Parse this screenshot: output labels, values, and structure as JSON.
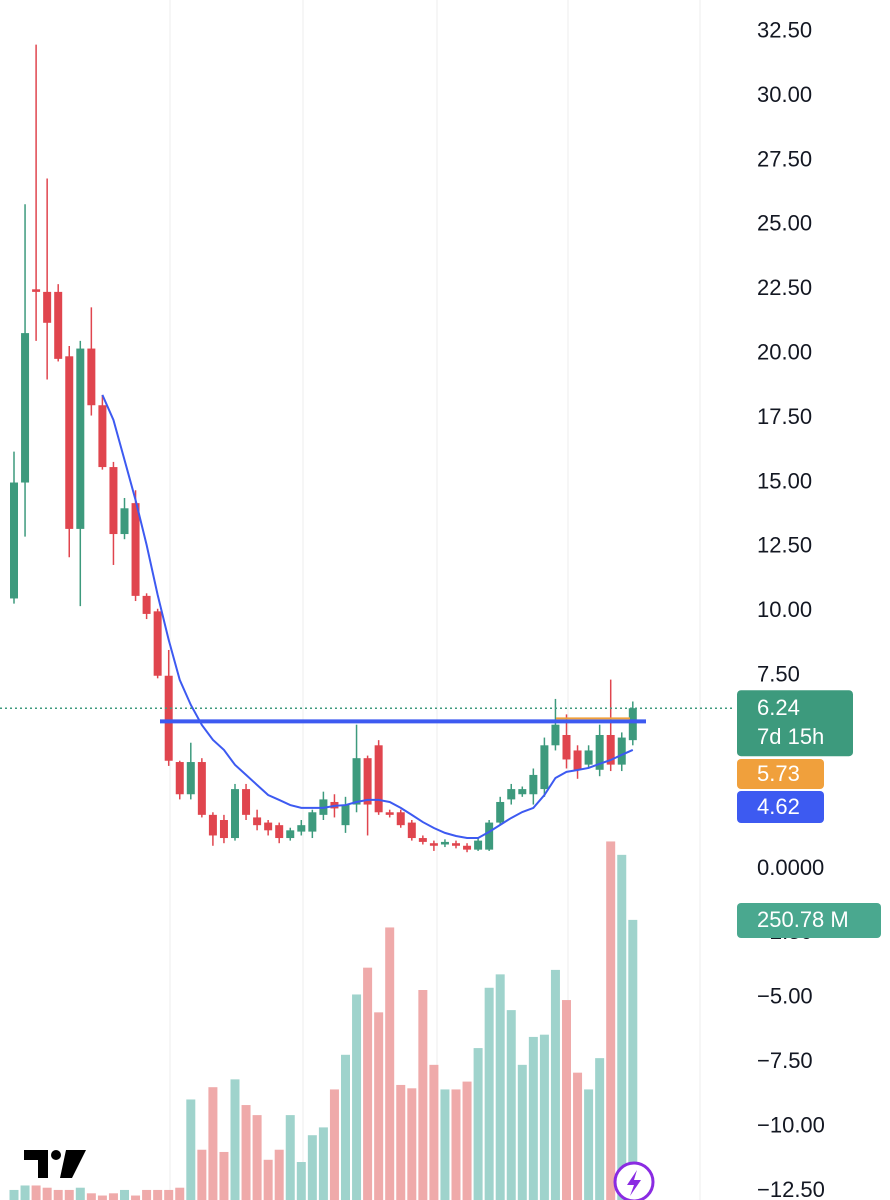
{
  "chart_data": {
    "type": "candlestick",
    "ylim": [
      -12.85,
      33.73
    ],
    "yticks": [
      {
        "value": 32.5,
        "label": "32.50"
      },
      {
        "value": 30,
        "label": "30.00"
      },
      {
        "value": 27.5,
        "label": "27.50"
      },
      {
        "value": 25,
        "label": "25.00"
      },
      {
        "value": 22.5,
        "label": "22.50"
      },
      {
        "value": 20,
        "label": "20.00"
      },
      {
        "value": 17.5,
        "label": "17.50"
      },
      {
        "value": 15,
        "label": "15.00"
      },
      {
        "value": 12.5,
        "label": "12.50"
      },
      {
        "value": 10,
        "label": "10.00"
      },
      {
        "value": 7.5,
        "label": "7.50"
      },
      {
        "value": 0,
        "label": "0.0000"
      },
      {
        "value": -2.5,
        "label": "−2.50"
      },
      {
        "value": -5,
        "label": "−5.00"
      },
      {
        "value": -7.5,
        "label": "−7.50"
      },
      {
        "value": -10,
        "label": "−10.00"
      },
      {
        "value": -12.5,
        "label": "−12.50"
      }
    ],
    "grid": true,
    "up_color": "#3d9a7d",
    "down_color": "#e0454e",
    "candles": {
      "open": [
        10.5,
        15,
        22.5,
        22.4,
        22.4,
        19.9,
        13.2,
        20.2,
        18,
        15.6,
        13,
        14.2,
        10.6,
        10,
        7.5,
        4.15,
        2.9,
        4.15,
        2.1,
        1.9,
        1.2,
        3.1,
        2,
        1.8,
        1.7,
        1.2,
        1.45,
        1.45,
        2.1,
        2.6,
        1.7,
        2.5,
        4.3,
        4.8,
        2.2,
        2.2,
        1.8,
        1.2,
        1,
        0.95,
        1,
        0.9,
        0.75,
        0.75,
        1.8,
        2.7,
        2.9,
        2.9,
        3.1,
        4.8,
        5.2,
        4.6,
        4.05,
        3.85,
        5.2,
        4.05,
        5
      ],
      "high": [
        16.2,
        25.8,
        32,
        26.8,
        22.7,
        20.3,
        20.5,
        21.8,
        18.4,
        15.8,
        14.4,
        14.7,
        10.7,
        10.1,
        8.5,
        4.2,
        4.9,
        4.3,
        2.2,
        2.1,
        3.3,
        3.3,
        2.3,
        1.9,
        1.8,
        1.6,
        1.9,
        2.3,
        3,
        2.9,
        2.8,
        5.6,
        4.4,
        5,
        2.3,
        2.3,
        1.9,
        1.3,
        1.1,
        1.15,
        1.1,
        1,
        1.2,
        1.9,
        2.8,
        3.3,
        3.2,
        3.9,
        5.1,
        6.6,
        6,
        4.8,
        4.8,
        5.6,
        7.35,
        5.3,
        6.5
      ],
      "low": [
        10.3,
        12.9,
        20.5,
        19,
        19.7,
        12.1,
        10.2,
        17.6,
        15.5,
        11.8,
        12.8,
        10.4,
        9.7,
        7.4,
        4,
        2.7,
        2.7,
        2,
        0.9,
        1,
        1.1,
        1.9,
        1.5,
        1.3,
        1,
        1.1,
        1.3,
        1.2,
        1.9,
        2,
        1.4,
        2.2,
        1.3,
        2.1,
        2,
        1.6,
        1.1,
        0.95,
        0.7,
        0.85,
        0.8,
        0.65,
        0.7,
        0.7,
        1.7,
        2.5,
        2.8,
        2.5,
        2.8,
        4.6,
        3.9,
        3.5,
        3.9,
        3.6,
        3.8,
        3.8,
        4.8
      ],
      "close": [
        15,
        20.8,
        22.4,
        21.2,
        19.8,
        13.2,
        20.2,
        18,
        15.6,
        13,
        14,
        10.6,
        9.9,
        7.5,
        4.2,
        2.9,
        4.15,
        2.1,
        1.3,
        1.2,
        3.1,
        2.1,
        1.7,
        1.5,
        1.2,
        1.5,
        1.7,
        2.2,
        2.7,
        2.35,
        2.5,
        4.3,
        2.5,
        2.2,
        2.1,
        1.7,
        1.2,
        1.05,
        0.9,
        1.05,
        0.9,
        0.75,
        1.1,
        1.8,
        2.6,
        3.1,
        3.1,
        3.65,
        4.8,
        5.6,
        4.25,
        3.85,
        4.6,
        5.2,
        4.05,
        5.1,
        6.24
      ]
    },
    "countdown": "7d 15h",
    "ema": {
      "color": "#3d5af1",
      "values": [
        null,
        null,
        null,
        null,
        null,
        null,
        null,
        null,
        18.4,
        17.43,
        15.88,
        14.32,
        12.58,
        10.64,
        8.89,
        7.34,
        6.37,
        5.59,
        5.01,
        4.62,
        4.04,
        3.65,
        3.26,
        2.87,
        2.68,
        2.48,
        2.37,
        2.37,
        2.37,
        2.45,
        2.48,
        2.6,
        2.68,
        2.68,
        2.6,
        2.37,
        2.1,
        1.82,
        1.59,
        1.4,
        1.28,
        1.2,
        1.2,
        1.44,
        1.71,
        1.98,
        2.21,
        2.37,
        2.87,
        3.53,
        3.77,
        3.84,
        3.92,
        4.08,
        4.23,
        4.43,
        4.62
      ]
    },
    "level": {
      "value": 5.73,
      "color": "#f0a03c",
      "line_color": "#3d5af1"
    },
    "volume": {
      "up_color": "#9fd3cc",
      "down_color": "#efaaaa",
      "badge_color": "#4aa88f",
      "values": [
        9,
        13,
        13,
        11,
        9,
        9,
        11,
        6,
        4,
        6,
        9,
        4,
        9,
        9,
        9,
        11,
        90,
        45,
        101,
        43,
        108,
        85,
        76,
        36,
        45,
        76,
        34,
        58,
        65,
        99,
        130,
        184,
        208,
        168,
        244,
        103,
        100,
        188,
        121,
        99,
        99,
        106,
        136,
        190,
        202,
        170,
        121,
        146,
        148,
        206,
        179,
        114,
        99,
        127,
        321,
        309,
        250.78
      ],
      "last_value_label": "250.78 M"
    }
  }
}
